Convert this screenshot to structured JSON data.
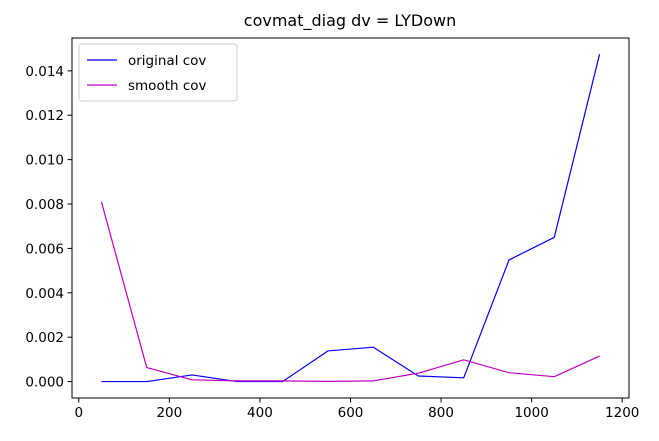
{
  "chart_data": {
    "type": "line",
    "title": "covmat_diag dv = LYDown",
    "xlabel": "",
    "ylabel": "",
    "xlim": [
      -15,
      1215
    ],
    "ylim": [
      -0.00074,
      0.01548
    ],
    "xticks": [
      0,
      200,
      400,
      600,
      800,
      1000,
      1200
    ],
    "yticks": [
      0.0,
      0.002,
      0.004,
      0.006,
      0.008,
      0.01,
      0.012,
      0.014
    ],
    "ytick_labels": [
      "0.000",
      "0.002",
      "0.004",
      "0.006",
      "0.008",
      "0.010",
      "0.012",
      "0.014"
    ],
    "grid": false,
    "legend_position": "upper-left",
    "x": [
      50,
      150,
      250,
      350,
      450,
      550,
      650,
      750,
      850,
      950,
      1050,
      1150
    ],
    "series": [
      {
        "name": "original cov",
        "color": "#0000ff",
        "values": [
          0.0,
          0.0,
          0.0003,
          0.0,
          0.0,
          0.00138,
          0.00155,
          0.00025,
          0.00017,
          0.00548,
          0.0065,
          0.01475
        ]
      },
      {
        "name": "smooth cov",
        "color": "#c000c0",
        "values": [
          0.0081,
          0.00063,
          8e-05,
          3e-05,
          3e-05,
          1e-05,
          3e-05,
          0.00038,
          0.00098,
          0.0004,
          0.00022,
          0.00115
        ]
      }
    ]
  }
}
